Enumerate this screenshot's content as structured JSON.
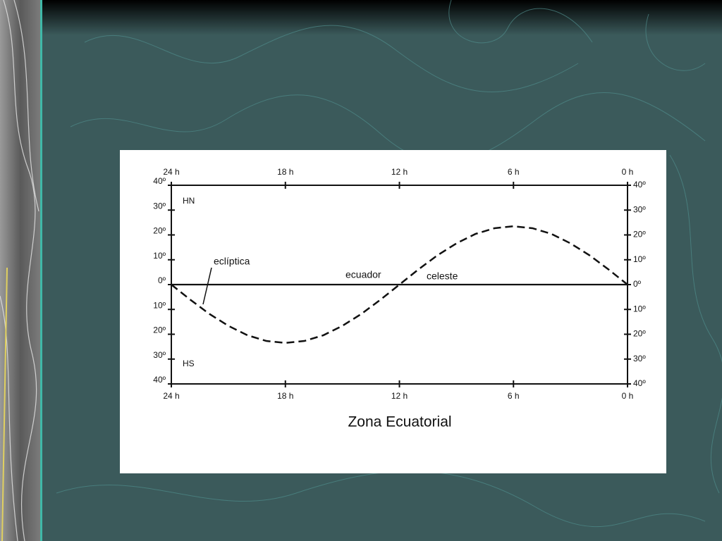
{
  "chart_data": {
    "type": "line",
    "title": "Zona Ecuatorial",
    "x": [
      24,
      23,
      22,
      21,
      20,
      19,
      18,
      17,
      16,
      15,
      14,
      13,
      12,
      11,
      10,
      9,
      8,
      7,
      6,
      5,
      4,
      3,
      2,
      1,
      0
    ],
    "xlim": [
      24,
      0
    ],
    "xticks": [
      {
        "value": 24,
        "label": "24 h"
      },
      {
        "value": 18,
        "label": "18 h"
      },
      {
        "value": 12,
        "label": "12 h"
      },
      {
        "value": 6,
        "label": "6 h"
      },
      {
        "value": 0,
        "label": "0 h"
      }
    ],
    "ylim": [
      -40,
      40
    ],
    "yticks": [
      {
        "value": 40,
        "label": "40º"
      },
      {
        "value": 30,
        "label": "30º"
      },
      {
        "value": 20,
        "label": "20º"
      },
      {
        "value": 10,
        "label": "10º"
      },
      {
        "value": 0,
        "label": "0º"
      },
      {
        "value": -10,
        "label": "10º"
      },
      {
        "value": -20,
        "label": "20º"
      },
      {
        "value": -30,
        "label": "30º"
      },
      {
        "value": -40,
        "label": "40º"
      }
    ],
    "series": [
      {
        "name": "eclíptica",
        "color": "#111111",
        "dashed": true,
        "values": [
          0,
          -6.1,
          -11.8,
          -16.6,
          -20.4,
          -22.7,
          -23.5,
          -22.7,
          -20.4,
          -16.6,
          -11.8,
          -6.1,
          0,
          6.1,
          11.8,
          16.6,
          20.4,
          22.7,
          23.5,
          22.7,
          20.4,
          16.6,
          11.8,
          6.1,
          0
        ]
      },
      {
        "color": "#111111",
        "dashed": false,
        "values": [
          0,
          0,
          0,
          0,
          0,
          0,
          0,
          0,
          0,
          0,
          0,
          0,
          0,
          0,
          0,
          0,
          0,
          0,
          0,
          0,
          0,
          0,
          0,
          0,
          0
        ]
      }
    ],
    "annotations": [
      "ecuador",
      "celeste",
      "HN",
      "HS"
    ]
  }
}
